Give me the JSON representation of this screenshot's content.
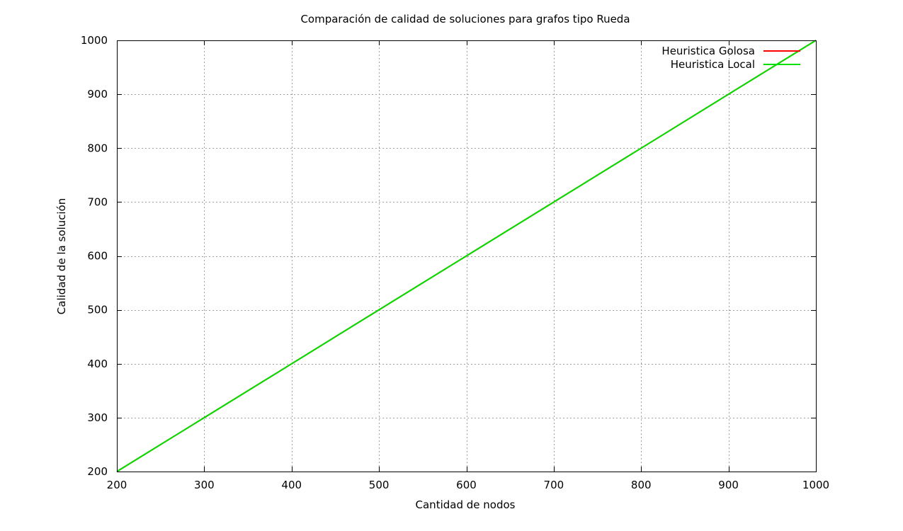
{
  "chart_data": {
    "type": "line",
    "title": "Comparación de calidad de soluciones para grafos tipo Rueda",
    "xlabel": "Cantidad de nodos",
    "ylabel": "Calidad de la solución",
    "xlim": [
      200,
      1000
    ],
    "ylim": [
      200,
      1000
    ],
    "x_ticks": [
      "200",
      "300",
      "400",
      "500",
      "600",
      "700",
      "800",
      "900",
      "1000"
    ],
    "y_ticks": [
      "200",
      "300",
      "400",
      "500",
      "600",
      "700",
      "800",
      "900",
      "1000"
    ],
    "grid": true,
    "legend_position": "top-right",
    "series": [
      {
        "name": "Heuristica Golosa",
        "color": "#ff0000",
        "x": [
          200,
          300,
          400,
          500,
          600,
          700,
          800,
          900,
          1000
        ],
        "values": [
          200,
          300,
          400,
          500,
          600,
          700,
          800,
          900,
          1000
        ]
      },
      {
        "name": "Heuristica Local",
        "color": "#00e000",
        "x": [
          200,
          300,
          400,
          500,
          600,
          700,
          800,
          900,
          1000
        ],
        "values": [
          200,
          300,
          400,
          500,
          600,
          700,
          800,
          900,
          1000
        ]
      }
    ]
  }
}
